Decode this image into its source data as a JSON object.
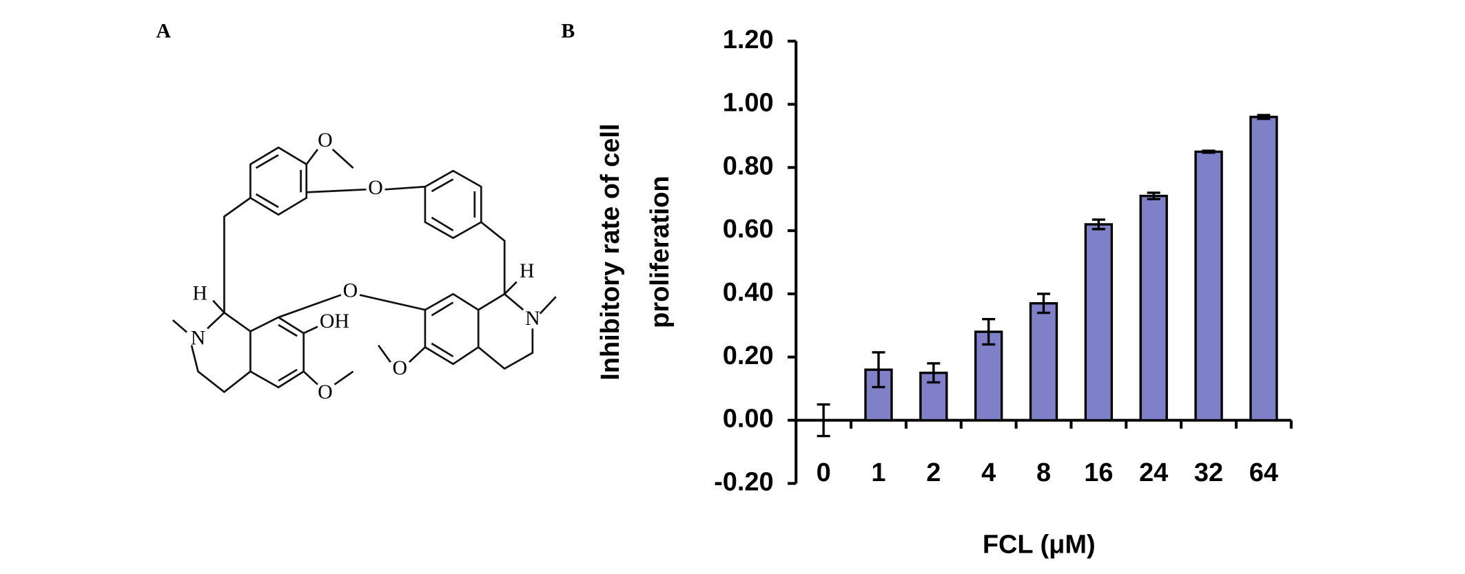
{
  "panels": {
    "a": "A",
    "b": "B"
  },
  "structure": {
    "atoms": [
      "O",
      "O",
      "O",
      "OH",
      "O",
      "O",
      "H",
      "N",
      "H",
      "N"
    ]
  },
  "chart_data": {
    "type": "bar",
    "y_label": [
      "Inhibitory rate of cell",
      "proliferation"
    ],
    "x_label": "FCL (μM)",
    "categories": [
      "0",
      "1",
      "2",
      "4",
      "8",
      "16",
      "24",
      "32",
      "64"
    ],
    "values": [
      0.0,
      0.16,
      0.15,
      0.28,
      0.37,
      0.62,
      0.71,
      0.85,
      0.96
    ],
    "errors": [
      0.05,
      0.055,
      0.03,
      0.04,
      0.03,
      0.015,
      0.01,
      0.003,
      0.006
    ],
    "color": "#8080c8",
    "ylim": [
      -0.2,
      1.2
    ],
    "yticks": [
      {
        "value": -0.2,
        "label": "-0.20"
      },
      {
        "value": 0,
        "label": "0.00"
      },
      {
        "value": 0.2,
        "label": "0.20"
      },
      {
        "value": 0.4,
        "label": "0.40"
      },
      {
        "value": 0.6,
        "label": "0.60"
      },
      {
        "value": 0.8,
        "label": "0.80"
      },
      {
        "value": 1.0,
        "label": "1.00"
      },
      {
        "value": 1.2,
        "label": "1.20"
      }
    ]
  }
}
